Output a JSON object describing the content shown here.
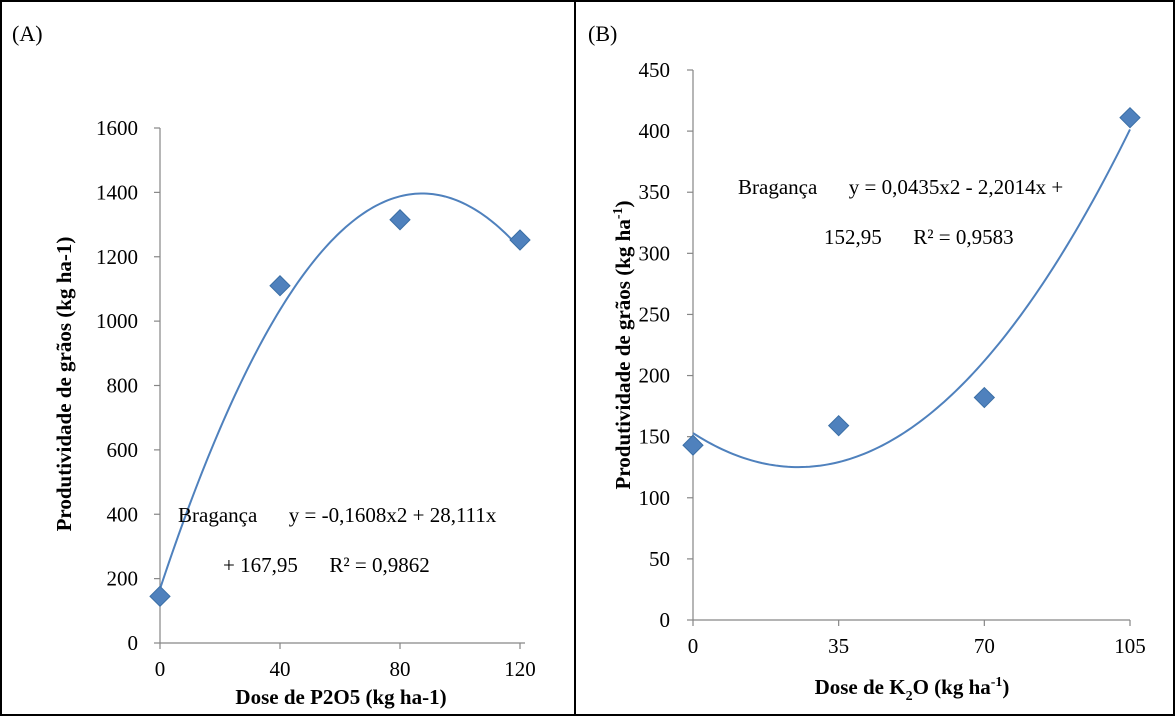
{
  "chart_data": [
    {
      "type": "scatter",
      "panel_label": "(A)",
      "xlabel": "Dose de P2O5 (kg ha-1)",
      "ylabel": "Produtividade de grãos (kg ha-1)",
      "xticks": [
        0,
        40,
        80,
        120
      ],
      "xlim": [
        0,
        120
      ],
      "yticks": [
        0,
        200,
        400,
        600,
        800,
        1000,
        1200,
        1400,
        1600
      ],
      "ylim": [
        0,
        1600
      ],
      "grid": false,
      "marker": "diamond",
      "color": "#4f81bd",
      "series": [
        {
          "x": [
            0,
            40,
            80,
            120
          ],
          "y": [
            145,
            1110,
            1315,
            1252
          ]
        }
      ],
      "trendline": {
        "type": "polynomial-2",
        "coefficients": {
          "a": -0.1608,
          "b": 28.111,
          "c": 167.95
        }
      },
      "annotation": {
        "line1": "Bragança      y = -0,1608x2 + 28,111x",
        "line2": "+ 167,95      R² = 0,9862"
      }
    },
    {
      "type": "scatter",
      "panel_label": "(B)",
      "xlabel_main": "Dose de K",
      "xlabel_sub": "2",
      "xlabel_mid": "O (kg ha",
      "xlabel_sup": "-1",
      "xlabel_end": ")",
      "ylabel_main": "Produtividade de grãos (kg ha",
      "ylabel_sup": "-1",
      "ylabel_end": ")",
      "xticks": [
        0,
        35,
        70,
        105
      ],
      "xlim": [
        0,
        105
      ],
      "yticks": [
        0,
        50,
        100,
        150,
        200,
        250,
        300,
        350,
        400,
        450
      ],
      "ylim": [
        0,
        450
      ],
      "grid": false,
      "marker": "diamond",
      "color": "#4f81bd",
      "series": [
        {
          "x": [
            0,
            35,
            70,
            105
          ],
          "y": [
            143,
            159,
            182,
            411
          ]
        }
      ],
      "trendline": {
        "type": "polynomial-2",
        "coefficients": {
          "a": 0.0435,
          "b": -2.2014,
          "c": 152.95
        }
      },
      "annotation": {
        "line1": "Bragança      y = 0,0435x2 - 2,2014x +",
        "line2": "152,95      R² = 0,9583"
      }
    }
  ]
}
